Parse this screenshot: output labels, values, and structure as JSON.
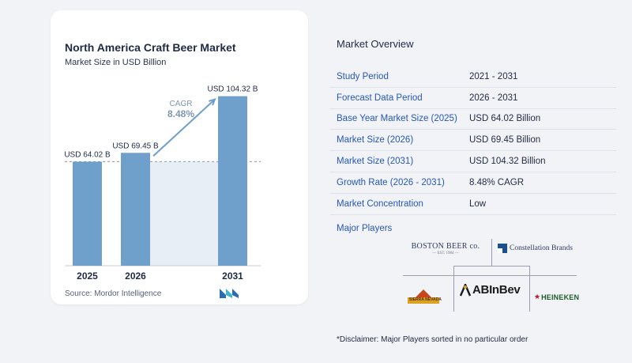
{
  "chart_data": {
    "type": "bar",
    "title": "North America Craft Beer Market",
    "subtitle": "Market Size in USD Billion",
    "categories": [
      "2025",
      "2026",
      "2031"
    ],
    "values": [
      64.02,
      69.45,
      104.32
    ],
    "value_labels": [
      "USD 64.02 B",
      "USD 69.45 B",
      "USD 104.32 B"
    ],
    "cagr_label": "CAGR",
    "cagr_value": "8.48%",
    "ylim": [
      0,
      127
    ],
    "colors": {
      "bar": "#6f9fcb",
      "bar_dark": "#5a8ab8",
      "shade": "#e7eef6",
      "arrow": "#6f9fcb",
      "cagr": "#7f96b0"
    },
    "source": "Source:  Mordor Intelligence"
  },
  "overview": {
    "title": "Market Overview",
    "rows": [
      {
        "key": "Study Period",
        "value": "2021 - 2031"
      },
      {
        "key": "Forecast Data Period",
        "value": "2026 - 2031"
      },
      {
        "key": "Base Year Market Size (2025)",
        "value": "USD 64.02 Billion"
      },
      {
        "key": "Market Size (2026)",
        "value": "USD 69.45 Billion"
      },
      {
        "key": "Market Size (2031)",
        "value": "USD 104.32 Billion"
      },
      {
        "key": "Growth Rate (2026 - 2031)",
        "value": "8.48% CAGR"
      },
      {
        "key": "Market Concentration",
        "value": "Low"
      }
    ]
  },
  "players": {
    "title": "Major Players",
    "boston_beer": "BOSTON BEER co.",
    "boston_beer_sub": "— EST. 1984 —",
    "constellation": "Constellation Brands",
    "abinbev": "ABInBev",
    "heineken": "HEINEKEN",
    "sierra_nevada": "SIERRA NEVADA"
  },
  "disclaimer": "*Disclaimer: Major Players sorted in no particular order"
}
